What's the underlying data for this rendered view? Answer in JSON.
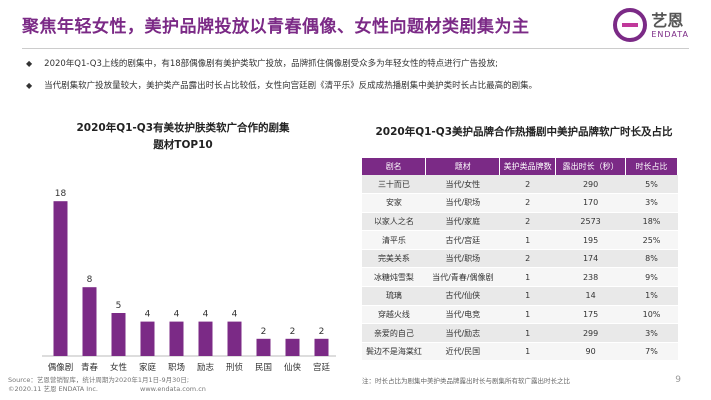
{
  "header": {
    "title": "聚焦年轻女性，美护品牌投放以青春偶像、女性向题材类剧集为主",
    "logo_cn": "艺恩",
    "logo_en": "ENDATA"
  },
  "bullets": [
    "2020年Q1-Q3上线的剧集中，有18部偶像剧有美护类软广投放，品牌抓住偶像剧受众多为年轻女性的特点进行广告投放;",
    "当代剧集软广投放量较大，美护类产品露出时长占比较低，女性向宫廷剧《清平乐》反成成热播剧集中美护类时长占比最高的剧集。"
  ],
  "chart_data": [
    {
      "type": "bar",
      "title_line1": "2020年Q1-Q3有美妆护肤类软广合作的剧集",
      "title_line2": "题材TOP10",
      "categories": [
        "偶像剧",
        "青春",
        "女性",
        "家庭",
        "职场",
        "励志",
        "刑侦",
        "民国",
        "仙侠",
        "宫廷"
      ],
      "values": [
        18,
        8,
        5,
        4,
        4,
        4,
        4,
        2,
        2,
        2
      ],
      "color": "#7b2a86",
      "ylim": [
        0,
        20
      ]
    },
    {
      "type": "table",
      "title": "2020年Q1-Q3美护品牌合作热播剧中美护品牌软广时长及占比",
      "columns": [
        "剧名",
        "题材",
        "美护类品牌数",
        "露出时长（秒）",
        "时长占比"
      ],
      "rows": [
        [
          "三十而已",
          "当代/女性",
          "2",
          "290",
          "5%"
        ],
        [
          "安家",
          "当代/职场",
          "2",
          "170",
          "3%"
        ],
        [
          "以家人之名",
          "当代/家庭",
          "2",
          "2573",
          "18%"
        ],
        [
          "清平乐",
          "古代/宫廷",
          "1",
          "195",
          "25%"
        ],
        [
          "完美关系",
          "当代/职场",
          "2",
          "174",
          "8%"
        ],
        [
          "冰糖炖雪梨",
          "当代/青春/偶像剧",
          "1",
          "238",
          "9%"
        ],
        [
          "琉璃",
          "古代/仙侠",
          "1",
          "14",
          "1%"
        ],
        [
          "穿越火线",
          "当代/电竞",
          "1",
          "175",
          "10%"
        ],
        [
          "亲爱的自己",
          "当代/励志",
          "1",
          "299",
          "3%"
        ],
        [
          "鬓边不是海棠红",
          "近代/民国",
          "1",
          "90",
          "7%"
        ]
      ]
    }
  ],
  "note": "注：时长占比为剧集中美护类品牌露出时长与剧集所有软广露出时长之比",
  "footer": {
    "source": "Source：艺恩营销智库，统计周期为2020年1月1日-9月30日;",
    "copyright": "©2020.11 艺恩 ENDATA Inc.",
    "url": "www.endata.com.cn"
  },
  "page_number": "9"
}
